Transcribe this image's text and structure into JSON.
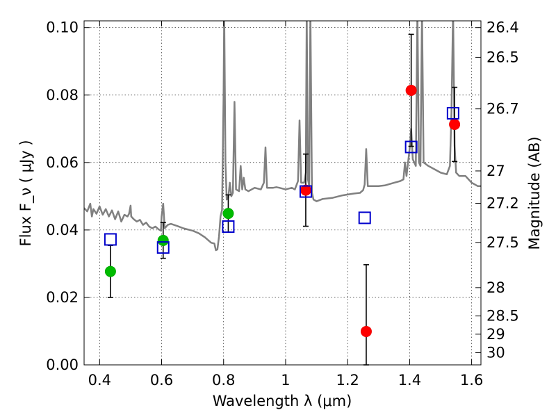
{
  "chart_data": {
    "type": "scatter",
    "xlabel": "Wavelength  λ (μm)",
    "ylabel": "Flux  F_ν  ( μJy )",
    "y2label": "Magnitude (AB)",
    "xlim": [
      0.35,
      1.63
    ],
    "ylim": [
      0.0,
      0.102
    ],
    "x_ticks": [
      0.4,
      0.6,
      0.8,
      1.0,
      1.2,
      1.4,
      1.6
    ],
    "x_tick_labels": [
      "0.4",
      "0.6",
      "0.8",
      "1",
      "1.2",
      "1.4",
      "1.6"
    ],
    "y_ticks": [
      0.0,
      0.02,
      0.04,
      0.06,
      0.08,
      0.1
    ],
    "y_tick_labels": [
      "0.00",
      "0.02",
      "0.04",
      "0.06",
      "0.08",
      "0.10"
    ],
    "mag_ticks": [
      {
        "label": "26.4",
        "flux": 0.1
      },
      {
        "label": "26.5",
        "flux": 0.0912
      },
      {
        "label": "26.7",
        "flux": 0.0759
      },
      {
        "label": "27",
        "flux": 0.0575
      },
      {
        "label": "27.2",
        "flux": 0.0479
      },
      {
        "label": "27.5",
        "flux": 0.0363
      },
      {
        "label": "28",
        "flux": 0.0229
      },
      {
        "label": "28.5",
        "flux": 0.0145
      },
      {
        "label": "29",
        "flux": 0.0091
      },
      {
        "label": "30",
        "flux": 0.0036
      }
    ],
    "grid": true,
    "model_spectrum": {
      "color": "#808080",
      "points": [
        [
          0.35,
          0.0465
        ],
        [
          0.36,
          0.0455
        ],
        [
          0.37,
          0.0478
        ],
        [
          0.375,
          0.044
        ],
        [
          0.38,
          0.0462
        ],
        [
          0.39,
          0.0448
        ],
        [
          0.4,
          0.047
        ],
        [
          0.41,
          0.0445
        ],
        [
          0.42,
          0.0462
        ],
        [
          0.43,
          0.044
        ],
        [
          0.44,
          0.0458
        ],
        [
          0.45,
          0.0432
        ],
        [
          0.46,
          0.0455
        ],
        [
          0.47,
          0.0425
        ],
        [
          0.48,
          0.0445
        ],
        [
          0.49,
          0.044
        ],
        [
          0.495,
          0.0448
        ],
        [
          0.5,
          0.0472
        ],
        [
          0.502,
          0.044
        ],
        [
          0.51,
          0.0432
        ],
        [
          0.52,
          0.0425
        ],
        [
          0.53,
          0.043
        ],
        [
          0.54,
          0.0415
        ],
        [
          0.55,
          0.0422
        ],
        [
          0.56,
          0.041
        ],
        [
          0.57,
          0.0405
        ],
        [
          0.58,
          0.041
        ],
        [
          0.59,
          0.0402
        ],
        [
          0.598,
          0.0398
        ],
        [
          0.6,
          0.044
        ],
        [
          0.605,
          0.0478
        ],
        [
          0.61,
          0.0405
        ],
        [
          0.62,
          0.0415
        ],
        [
          0.63,
          0.0418
        ],
        [
          0.65,
          0.0412
        ],
        [
          0.67,
          0.0405
        ],
        [
          0.7,
          0.0398
        ],
        [
          0.72,
          0.039
        ],
        [
          0.74,
          0.0378
        ],
        [
          0.75,
          0.037
        ],
        [
          0.76,
          0.0362
        ],
        [
          0.77,
          0.036
        ],
        [
          0.775,
          0.034
        ],
        [
          0.78,
          0.0342
        ],
        [
          0.785,
          0.038
        ],
        [
          0.79,
          0.044
        ],
        [
          0.795,
          0.046
        ],
        [
          0.8,
          0.08
        ],
        [
          0.802,
          0.105
        ],
        [
          0.806,
          0.06
        ],
        [
          0.81,
          0.049
        ],
        [
          0.815,
          0.0495
        ],
        [
          0.82,
          0.054
        ],
        [
          0.825,
          0.05
        ],
        [
          0.83,
          0.051
        ],
        [
          0.835,
          0.078
        ],
        [
          0.84,
          0.052
        ],
        [
          0.85,
          0.0515
        ],
        [
          0.855,
          0.059
        ],
        [
          0.86,
          0.052
        ],
        [
          0.865,
          0.0555
        ],
        [
          0.87,
          0.052
        ],
        [
          0.88,
          0.0515
        ],
        [
          0.9,
          0.0525
        ],
        [
          0.92,
          0.052
        ],
        [
          0.93,
          0.054
        ],
        [
          0.935,
          0.0645
        ],
        [
          0.94,
          0.0525
        ],
        [
          0.95,
          0.0525
        ],
        [
          0.96,
          0.0525
        ],
        [
          0.97,
          0.0527
        ],
        [
          0.98,
          0.0525
        ],
        [
          1.0,
          0.052
        ],
        [
          1.02,
          0.0525
        ],
        [
          1.03,
          0.052
        ],
        [
          1.04,
          0.0545
        ],
        [
          1.045,
          0.0725
        ],
        [
          1.05,
          0.054
        ],
        [
          1.06,
          0.054
        ],
        [
          1.065,
          0.057
        ],
        [
          1.068,
          0.105
        ],
        [
          1.072,
          0.055
        ],
        [
          1.076,
          0.053
        ],
        [
          1.08,
          0.105
        ],
        [
          1.085,
          0.051
        ],
        [
          1.09,
          0.049
        ],
        [
          1.1,
          0.0485
        ],
        [
          1.12,
          0.0492
        ],
        [
          1.15,
          0.0495
        ],
        [
          1.18,
          0.0502
        ],
        [
          1.2,
          0.0505
        ],
        [
          1.22,
          0.0508
        ],
        [
          1.24,
          0.051
        ],
        [
          1.25,
          0.0518
        ],
        [
          1.255,
          0.0535
        ],
        [
          1.26,
          0.064
        ],
        [
          1.265,
          0.053
        ],
        [
          1.28,
          0.053
        ],
        [
          1.3,
          0.053
        ],
        [
          1.32,
          0.0532
        ],
        [
          1.35,
          0.054
        ],
        [
          1.37,
          0.0545
        ],
        [
          1.38,
          0.055
        ],
        [
          1.385,
          0.06
        ],
        [
          1.39,
          0.056
        ],
        [
          1.4,
          0.064
        ],
        [
          1.405,
          0.07
        ],
        [
          1.41,
          0.061
        ],
        [
          1.42,
          0.059
        ],
        [
          1.425,
          0.105
        ],
        [
          1.43,
          0.06
        ],
        [
          1.435,
          0.059
        ],
        [
          1.44,
          0.105
        ],
        [
          1.445,
          0.06
        ],
        [
          1.46,
          0.059
        ],
        [
          1.48,
          0.058
        ],
        [
          1.5,
          0.057
        ],
        [
          1.52,
          0.0565
        ],
        [
          1.53,
          0.059
        ],
        [
          1.535,
          0.075
        ],
        [
          1.54,
          0.105
        ],
        [
          1.545,
          0.065
        ],
        [
          1.55,
          0.057
        ],
        [
          1.56,
          0.056
        ],
        [
          1.58,
          0.056
        ],
        [
          1.6,
          0.054
        ],
        [
          1.62,
          0.053
        ],
        [
          1.63,
          0.053
        ]
      ]
    },
    "series": [
      {
        "marker": "circle",
        "color": "#00bb00",
        "stroke": "#00aa00",
        "points": [
          {
            "x": 0.435,
            "y": 0.0277,
            "err": 0.0077
          },
          {
            "x": 0.605,
            "y": 0.0369,
            "err": 0.0053
          },
          {
            "x": 0.815,
            "y": 0.0449,
            "err": 0.0055
          }
        ]
      },
      {
        "marker": "circle",
        "color": "#ff0000",
        "stroke": "#ee0000",
        "points": [
          {
            "x": 1.065,
            "y": 0.0518,
            "err": 0.0107
          },
          {
            "x": 1.26,
            "y": 0.0099,
            "err": 0.0198
          },
          {
            "x": 1.405,
            "y": 0.0814,
            "err": 0.0166
          },
          {
            "x": 1.545,
            "y": 0.0713,
            "err": 0.011
          }
        ]
      },
      {
        "marker": "square",
        "color": "#0000cc",
        "points": [
          {
            "x": 0.435,
            "y": 0.0372
          },
          {
            "x": 0.605,
            "y": 0.0348
          },
          {
            "x": 0.815,
            "y": 0.041
          },
          {
            "x": 1.065,
            "y": 0.0514
          },
          {
            "x": 1.255,
            "y": 0.0436
          },
          {
            "x": 1.405,
            "y": 0.0646
          },
          {
            "x": 1.54,
            "y": 0.0746
          }
        ]
      }
    ]
  }
}
